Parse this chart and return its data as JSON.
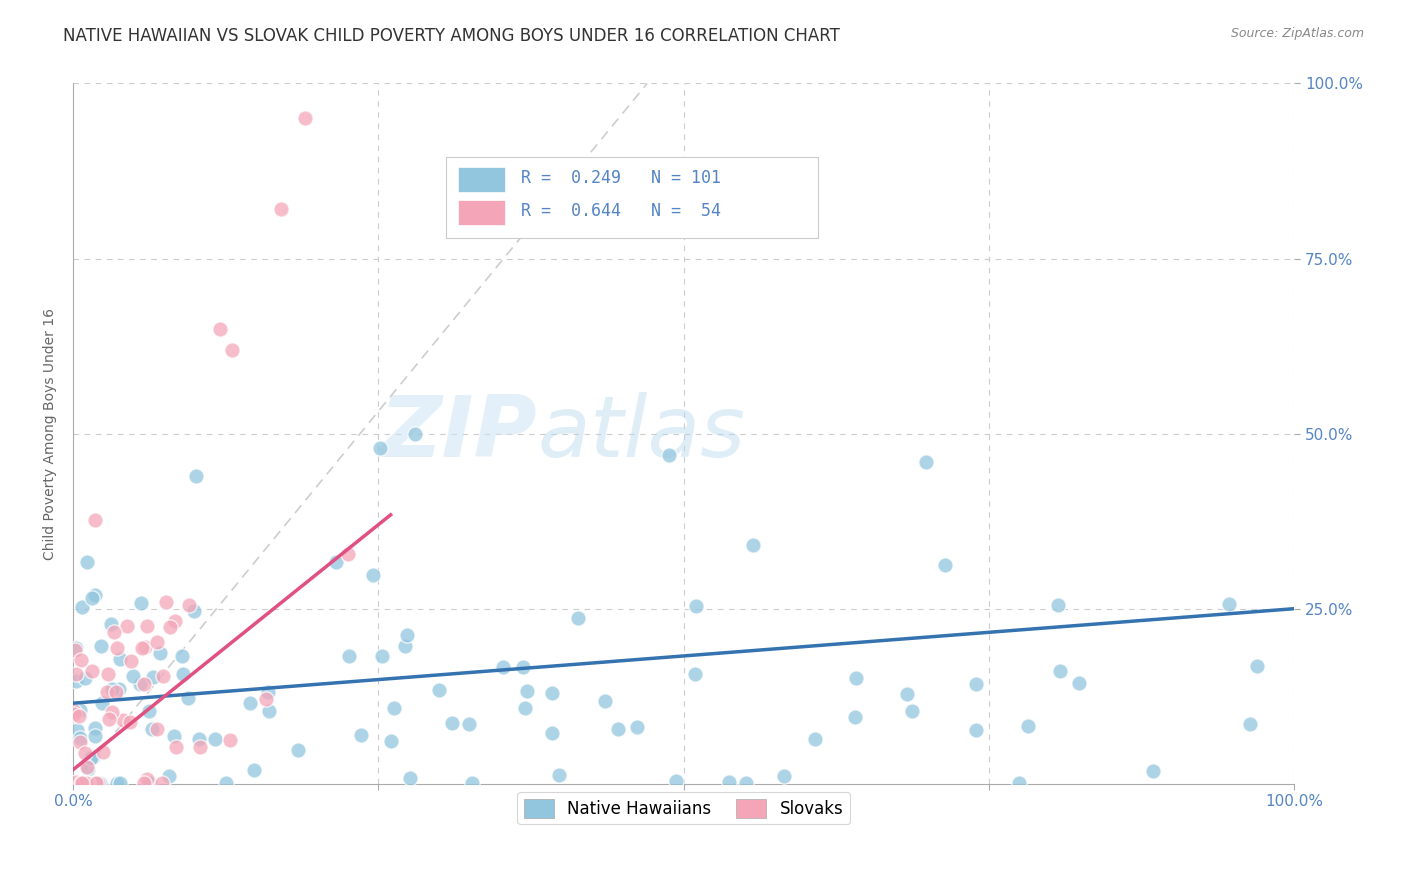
{
  "title": "NATIVE HAWAIIAN VS SLOVAK CHILD POVERTY AMONG BOYS UNDER 16 CORRELATION CHART",
  "source": "Source: ZipAtlas.com",
  "ylabel": "Child Poverty Among Boys Under 16",
  "watermark_zip": "ZIP",
  "watermark_atlas": "atlas",
  "blue_color": "#92c5de",
  "pink_color": "#f4a6b8",
  "blue_line_color": "#3572b0",
  "pink_line_color": "#e05080",
  "tick_label_color": "#5585c5",
  "title_color": "#333333",
  "source_color": "#888888",
  "background_color": "#ffffff",
  "grid_color": "#cccccc",
  "blue_R": 0.249,
  "blue_N": 101,
  "pink_R": 0.644,
  "pink_N": 54,
  "title_fontsize": 12,
  "label_fontsize": 10,
  "tick_fontsize": 11,
  "legend_fontsize": 12
}
